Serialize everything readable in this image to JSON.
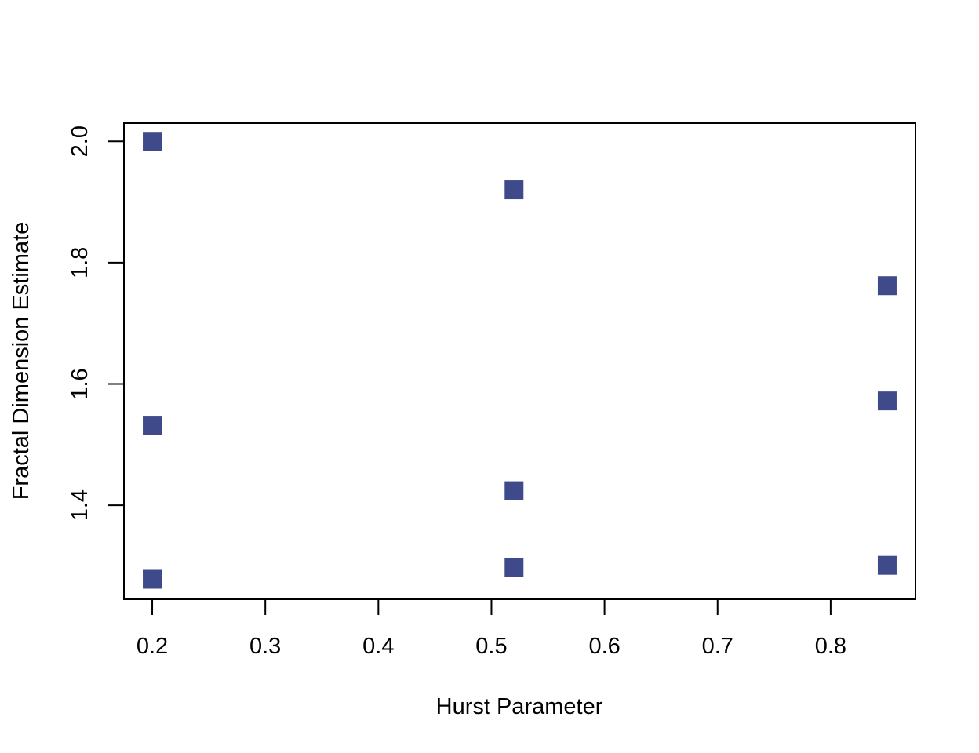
{
  "chart_data": {
    "type": "scatter",
    "title": "",
    "xlabel": "Hurst Parameter",
    "ylabel": "Fractal Dimension Estimate",
    "xlim": [
      0.175,
      0.875
    ],
    "ylim": [
      1.245,
      2.03
    ],
    "xticks": [
      0.2,
      0.3,
      0.4,
      0.5,
      0.6,
      0.7,
      0.8
    ],
    "xtick_labels": [
      "0.2",
      "0.3",
      "0.4",
      "0.5",
      "0.6",
      "0.7",
      "0.8"
    ],
    "yticks": [
      1.4,
      1.6,
      1.8,
      2.0
    ],
    "ytick_labels": [
      "1.4",
      "1.6",
      "1.8",
      "2.0"
    ],
    "grid": false,
    "legend": "none",
    "marker": "filled-square",
    "point_color": "#3e4a89",
    "points": [
      {
        "x": 0.2,
        "y": 2.0
      },
      {
        "x": 0.2,
        "y": 1.532
      },
      {
        "x": 0.2,
        "y": 1.278
      },
      {
        "x": 0.52,
        "y": 1.92
      },
      {
        "x": 0.52,
        "y": 1.424
      },
      {
        "x": 0.52,
        "y": 1.298
      },
      {
        "x": 0.85,
        "y": 1.762
      },
      {
        "x": 0.85,
        "y": 1.572
      },
      {
        "x": 0.85,
        "y": 1.301
      }
    ]
  }
}
